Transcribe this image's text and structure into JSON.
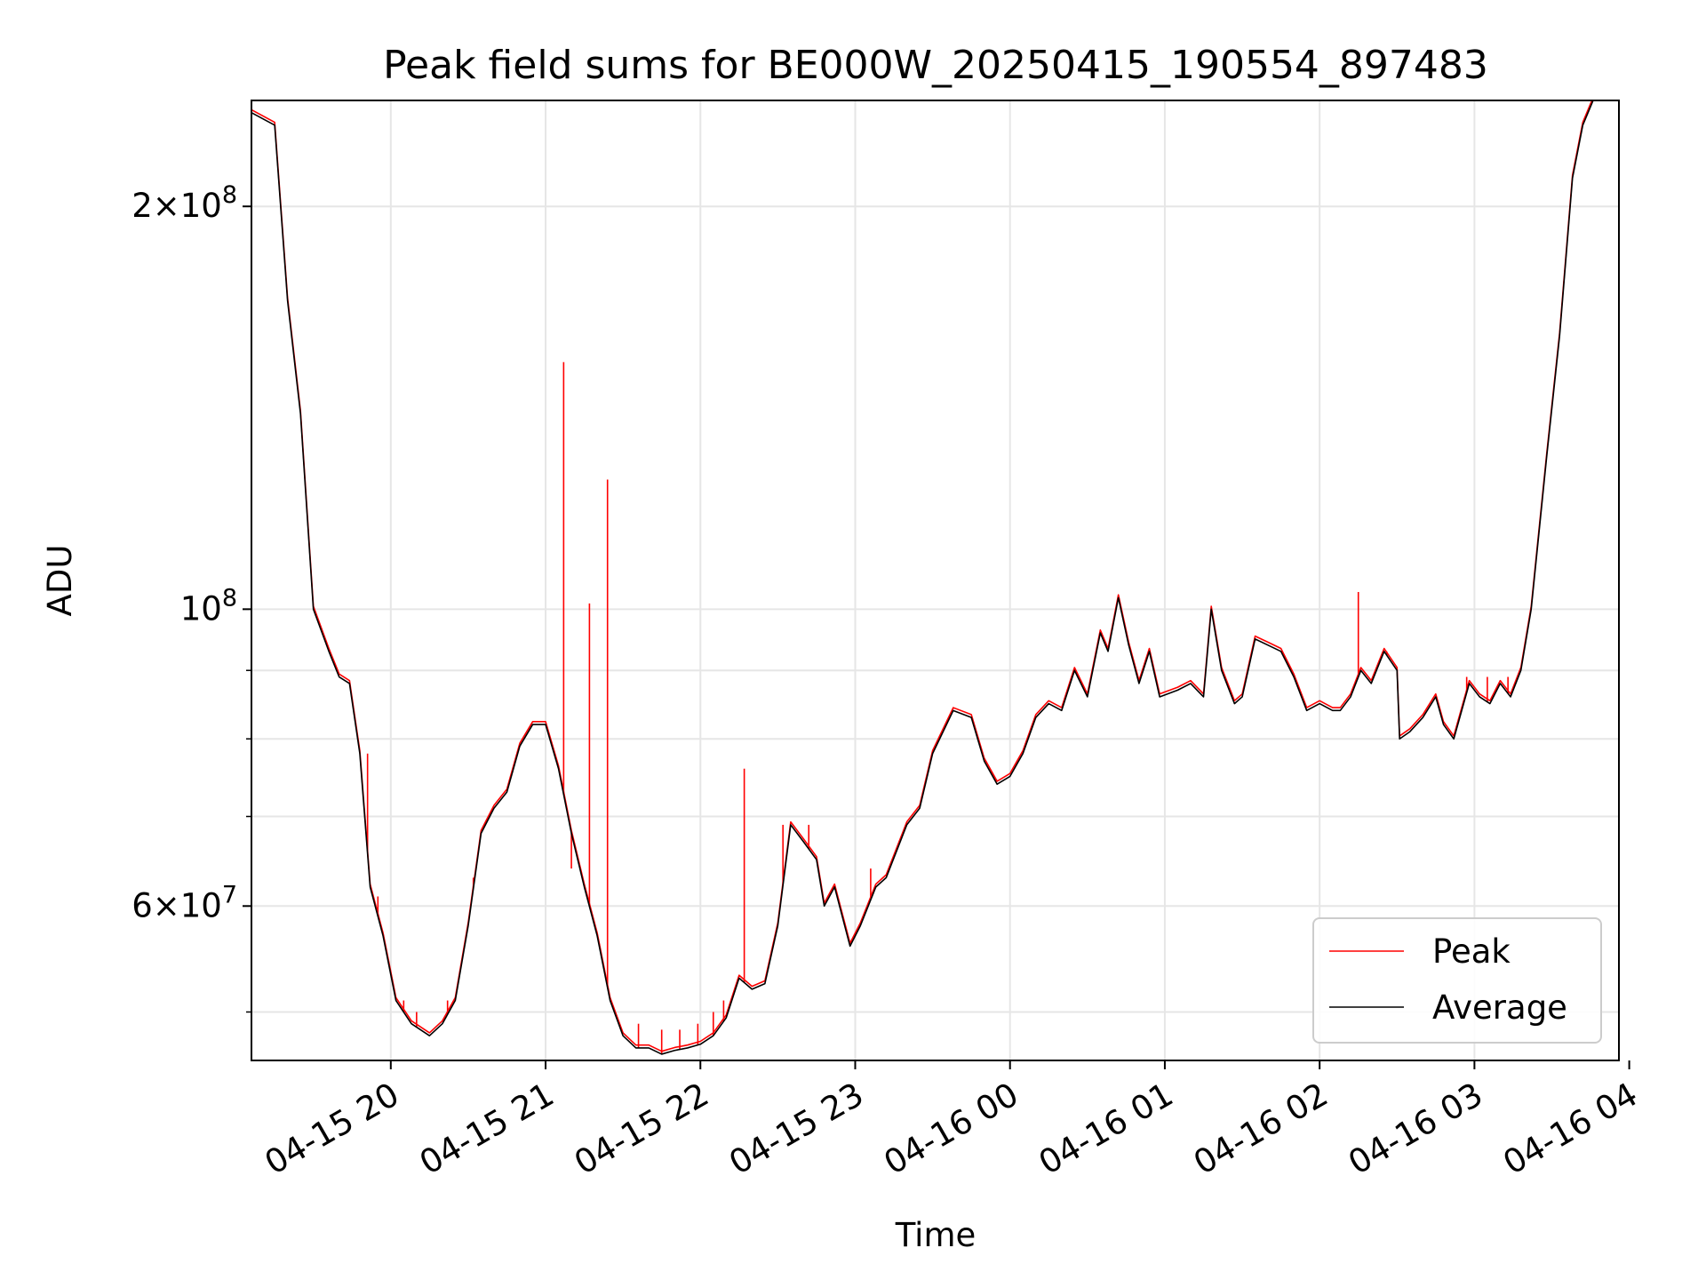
{
  "chart_data": {
    "type": "line",
    "title": "Peak field sums for BE000W_20250415_190554_897483",
    "xlabel": "Time",
    "ylabel": "ADU",
    "y_scale": "log",
    "ylim": [
      46000000,
      240000000
    ],
    "xlim": [
      "2025-04-15 19:06",
      "2025-04-16 03:56"
    ],
    "grid": true,
    "legend_placement": "lower-right",
    "x_ticks": [
      {
        "t": "2025-04-15 20:00",
        "label": "04-15 20"
      },
      {
        "t": "2025-04-15 21:00",
        "label": "04-15 21"
      },
      {
        "t": "2025-04-15 22:00",
        "label": "04-15 22"
      },
      {
        "t": "2025-04-15 23:00",
        "label": "04-15 23"
      },
      {
        "t": "2025-04-16 00:00",
        "label": "04-16 00"
      },
      {
        "t": "2025-04-16 01:00",
        "label": "04-16 01"
      },
      {
        "t": "2025-04-16 02:00",
        "label": "04-16 02"
      },
      {
        "t": "2025-04-16 03:00",
        "label": "04-16 03"
      },
      {
        "t": "2025-04-16 04:00",
        "label": "04-16 04"
      }
    ],
    "y_major_ticks": [
      {
        "value": 60000000,
        "base": "6×10",
        "exp": "7"
      },
      {
        "value": 100000000,
        "base": "10",
        "exp": "8"
      },
      {
        "value": 200000000,
        "base": "2×10",
        "exp": "8"
      }
    ],
    "y_minor_ticks": [
      50000000,
      70000000,
      80000000,
      90000000
    ],
    "series": [
      {
        "name": "Average",
        "color": "#000000",
        "points": [
          [
            "2025-04-15 19:06",
            235000000
          ],
          [
            "2025-04-15 19:15",
            230000000
          ],
          [
            "2025-04-15 19:20",
            170000000
          ],
          [
            "2025-04-15 19:25",
            140000000
          ],
          [
            "2025-04-15 19:30",
            100000000
          ],
          [
            "2025-04-15 19:36",
            93000000
          ],
          [
            "2025-04-15 19:40",
            89000000
          ],
          [
            "2025-04-15 19:44",
            88000000
          ],
          [
            "2025-04-15 19:48",
            78000000
          ],
          [
            "2025-04-15 19:52",
            62000000
          ],
          [
            "2025-04-15 19:57",
            57000000
          ],
          [
            "2025-04-15 20:02",
            51000000
          ],
          [
            "2025-04-15 20:08",
            49000000
          ],
          [
            "2025-04-15 20:15",
            48000000
          ],
          [
            "2025-04-15 20:20",
            49000000
          ],
          [
            "2025-04-15 20:25",
            51000000
          ],
          [
            "2025-04-15 20:30",
            58000000
          ],
          [
            "2025-04-15 20:35",
            68000000
          ],
          [
            "2025-04-15 20:40",
            71000000
          ],
          [
            "2025-04-15 20:45",
            73000000
          ],
          [
            "2025-04-15 20:50",
            79000000
          ],
          [
            "2025-04-15 20:55",
            82000000
          ],
          [
            "2025-04-15 21:00",
            82000000
          ],
          [
            "2025-04-15 21:05",
            76000000
          ],
          [
            "2025-04-15 21:10",
            68000000
          ],
          [
            "2025-04-15 21:15",
            62000000
          ],
          [
            "2025-04-15 21:20",
            57000000
          ],
          [
            "2025-04-15 21:25",
            51000000
          ],
          [
            "2025-04-15 21:30",
            48000000
          ],
          [
            "2025-04-15 21:35",
            47000000
          ],
          [
            "2025-04-15 21:40",
            47000000
          ],
          [
            "2025-04-15 21:45",
            46500000
          ],
          [
            "2025-04-15 21:50",
            46800000
          ],
          [
            "2025-04-15 21:55",
            47000000
          ],
          [
            "2025-04-15 22:00",
            47300000
          ],
          [
            "2025-04-15 22:05",
            48000000
          ],
          [
            "2025-04-15 22:10",
            49500000
          ],
          [
            "2025-04-15 22:15",
            53000000
          ],
          [
            "2025-04-15 22:20",
            52000000
          ],
          [
            "2025-04-15 22:25",
            52500000
          ],
          [
            "2025-04-15 22:30",
            58000000
          ],
          [
            "2025-04-15 22:35",
            69000000
          ],
          [
            "2025-04-15 22:40",
            67000000
          ],
          [
            "2025-04-15 22:45",
            65000000
          ],
          [
            "2025-04-15 22:48",
            60000000
          ],
          [
            "2025-04-15 22:52",
            62000000
          ],
          [
            "2025-04-15 22:58",
            56000000
          ],
          [
            "2025-04-15 23:02",
            58000000
          ],
          [
            "2025-04-15 23:08",
            62000000
          ],
          [
            "2025-04-15 23:12",
            63000000
          ],
          [
            "2025-04-15 23:20",
            69000000
          ],
          [
            "2025-04-15 23:25",
            71000000
          ],
          [
            "2025-04-15 23:30",
            78000000
          ],
          [
            "2025-04-15 23:38",
            84000000
          ],
          [
            "2025-04-15 23:45",
            83000000
          ],
          [
            "2025-04-15 23:50",
            77000000
          ],
          [
            "2025-04-15 23:55",
            74000000
          ],
          [
            "2025-04-16 00:00",
            75000000
          ],
          [
            "2025-04-16 00:05",
            78000000
          ],
          [
            "2025-04-16 00:10",
            83000000
          ],
          [
            "2025-04-16 00:15",
            85000000
          ],
          [
            "2025-04-16 00:20",
            84000000
          ],
          [
            "2025-04-16 00:25",
            90000000
          ],
          [
            "2025-04-16 00:30",
            86000000
          ],
          [
            "2025-04-16 00:35",
            96000000
          ],
          [
            "2025-04-16 00:38",
            93000000
          ],
          [
            "2025-04-16 00:42",
            102000000
          ],
          [
            "2025-04-16 00:46",
            94000000
          ],
          [
            "2025-04-16 00:50",
            88000000
          ],
          [
            "2025-04-16 00:54",
            93000000
          ],
          [
            "2025-04-16 00:58",
            86000000
          ],
          [
            "2025-04-16 01:05",
            87000000
          ],
          [
            "2025-04-16 01:10",
            88000000
          ],
          [
            "2025-04-16 01:15",
            86000000
          ],
          [
            "2025-04-16 01:18",
            100000000
          ],
          [
            "2025-04-16 01:22",
            90000000
          ],
          [
            "2025-04-16 01:27",
            85000000
          ],
          [
            "2025-04-16 01:30",
            86000000
          ],
          [
            "2025-04-16 01:35",
            95000000
          ],
          [
            "2025-04-16 01:40",
            94000000
          ],
          [
            "2025-04-16 01:45",
            93000000
          ],
          [
            "2025-04-16 01:50",
            89000000
          ],
          [
            "2025-04-16 01:55",
            84000000
          ],
          [
            "2025-04-16 02:00",
            85000000
          ],
          [
            "2025-04-16 02:05",
            84000000
          ],
          [
            "2025-04-16 02:08",
            84000000
          ],
          [
            "2025-04-16 02:12",
            86000000
          ],
          [
            "2025-04-16 02:16",
            90000000
          ],
          [
            "2025-04-16 02:20",
            88000000
          ],
          [
            "2025-04-16 02:25",
            93000000
          ],
          [
            "2025-04-16 02:30",
            90000000
          ],
          [
            "2025-04-16 02:31",
            80000000
          ],
          [
            "2025-04-16 02:35",
            81000000
          ],
          [
            "2025-04-16 02:40",
            83000000
          ],
          [
            "2025-04-16 02:45",
            86000000
          ],
          [
            "2025-04-16 02:48",
            82000000
          ],
          [
            "2025-04-16 02:52",
            80000000
          ],
          [
            "2025-04-16 02:58",
            88000000
          ],
          [
            "2025-04-16 03:02",
            86000000
          ],
          [
            "2025-04-16 03:06",
            85000000
          ],
          [
            "2025-04-16 03:10",
            88000000
          ],
          [
            "2025-04-16 03:14",
            86000000
          ],
          [
            "2025-04-16 03:18",
            90000000
          ],
          [
            "2025-04-16 03:22",
            100000000
          ],
          [
            "2025-04-16 03:28",
            130000000
          ],
          [
            "2025-04-16 03:33",
            160000000
          ],
          [
            "2025-04-16 03:38",
            210000000
          ],
          [
            "2025-04-16 03:42",
            230000000
          ],
          [
            "2025-04-16 03:46",
            240000000
          ],
          [
            "2025-04-16 03:56",
            240000000
          ]
        ]
      },
      {
        "name": "Peak",
        "color": "#ff0000",
        "spikes": [
          [
            "2025-04-15 19:51",
            78000000
          ],
          [
            "2025-04-15 19:55",
            61000000
          ],
          [
            "2025-04-15 20:05",
            51000000
          ],
          [
            "2025-04-15 20:10",
            50000000
          ],
          [
            "2025-04-15 20:22",
            51000000
          ],
          [
            "2025-04-15 20:32",
            63000000
          ],
          [
            "2025-04-15 21:07",
            153000000
          ],
          [
            "2025-04-15 21:10",
            64000000
          ],
          [
            "2025-04-15 21:17",
            101000000
          ],
          [
            "2025-04-15 21:24",
            125000000
          ],
          [
            "2025-04-15 21:36",
            49000000
          ],
          [
            "2025-04-15 21:45",
            48500000
          ],
          [
            "2025-04-15 21:52",
            48500000
          ],
          [
            "2025-04-15 21:59",
            49000000
          ],
          [
            "2025-04-15 22:05",
            50000000
          ],
          [
            "2025-04-15 22:09",
            51000000
          ],
          [
            "2025-04-15 22:17",
            76000000
          ],
          [
            "2025-04-15 22:32",
            69000000
          ],
          [
            "2025-04-15 22:42",
            69000000
          ],
          [
            "2025-04-15 23:06",
            64000000
          ],
          [
            "2025-04-16 02:15",
            103000000
          ],
          [
            "2025-04-16 02:26",
            93000000
          ],
          [
            "2025-04-16 02:57",
            89000000
          ],
          [
            "2025-04-16 03:05",
            89000000
          ],
          [
            "2025-04-16 03:13",
            89000000
          ]
        ]
      }
    ]
  }
}
